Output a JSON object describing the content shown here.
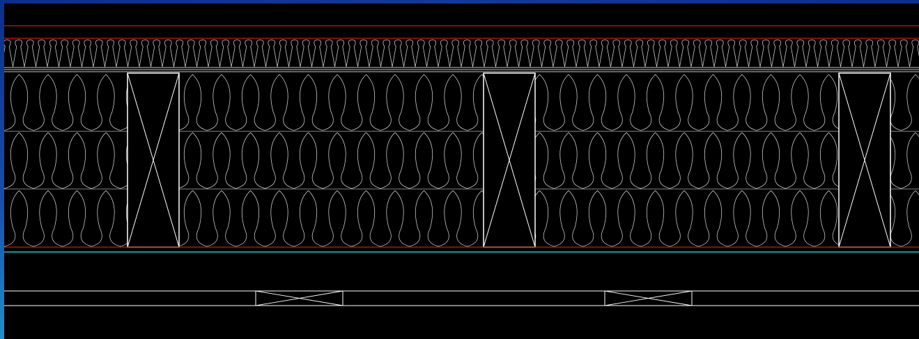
{
  "colors": {
    "background": "#000000",
    "frame": "#0a2f8f",
    "membrane_line": "#d01818",
    "insulation_line": "#c8c8c8",
    "stud_line": "#ffffff",
    "service_line": "#20c8c8",
    "batten_line": "#ffffff"
  },
  "layers": [
    {
      "name": "outer-membrane"
    },
    {
      "name": "rigid-insulation-board"
    },
    {
      "name": "sheathing-board"
    },
    {
      "name": "stud-cavity-insulation"
    },
    {
      "name": "vapour-barrier"
    },
    {
      "name": "service-cavity"
    },
    {
      "name": "battens"
    }
  ],
  "studs": {
    "count": 3,
    "symbol": "cross"
  },
  "battens": {
    "count": 2,
    "symbol": "cross"
  },
  "insulation": {
    "upper_symbol": "batt-insulation",
    "lower_rows": 3
  }
}
